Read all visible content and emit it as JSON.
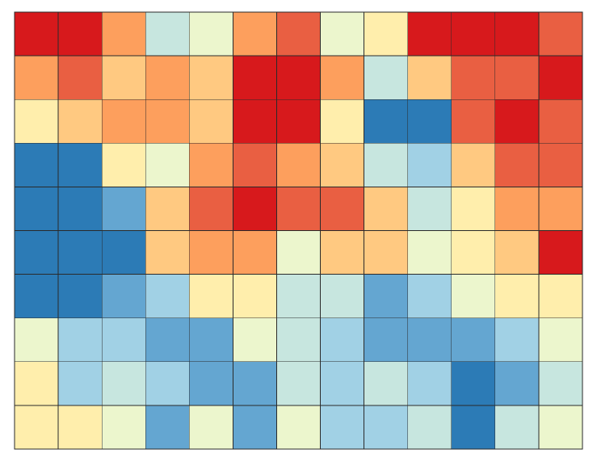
{
  "chart_data": {
    "type": "heatmap",
    "title": "",
    "xlabel": "",
    "ylabel": "",
    "colormap": "RdYlBu_r",
    "value_range": [
      0,
      9
    ],
    "legend": "none",
    "grid": true,
    "rows": 10,
    "cols": 13,
    "values": [
      [
        9,
        9,
        7,
        3,
        4,
        7,
        8,
        4,
        5,
        9,
        9,
        9,
        8
      ],
      [
        7,
        8,
        6,
        7,
        6,
        9,
        9,
        7,
        3,
        6,
        8,
        8,
        9
      ],
      [
        5,
        6,
        7,
        7,
        6,
        9,
        9,
        5,
        0,
        0,
        8,
        9,
        8
      ],
      [
        0,
        0,
        5,
        4,
        7,
        8,
        7,
        6,
        3,
        2,
        6,
        8,
        8
      ],
      [
        0,
        0,
        1,
        6,
        8,
        9,
        8,
        8,
        6,
        3,
        5,
        7,
        7
      ],
      [
        0,
        0,
        0,
        6,
        7,
        7,
        4,
        6,
        6,
        4,
        5,
        6,
        9
      ],
      [
        0,
        0,
        1,
        2,
        5,
        5,
        3,
        3,
        1,
        2,
        4,
        5,
        5
      ],
      [
        4,
        2,
        2,
        1,
        1,
        4,
        3,
        2,
        1,
        1,
        1,
        2,
        4
      ],
      [
        5,
        2,
        3,
        2,
        1,
        1,
        3,
        2,
        3,
        2,
        0,
        1,
        3
      ],
      [
        5,
        5,
        4,
        1,
        4,
        1,
        4,
        2,
        2,
        3,
        0,
        3,
        4
      ]
    ],
    "palette": [
      "#2c7bb6",
      "#64a6d1",
      "#a1d1e5",
      "#c7e6df",
      "#ecf6cd",
      "#ffeeac",
      "#ffc981",
      "#fd9f5d",
      "#e95f42",
      "#d7191c"
    ]
  }
}
